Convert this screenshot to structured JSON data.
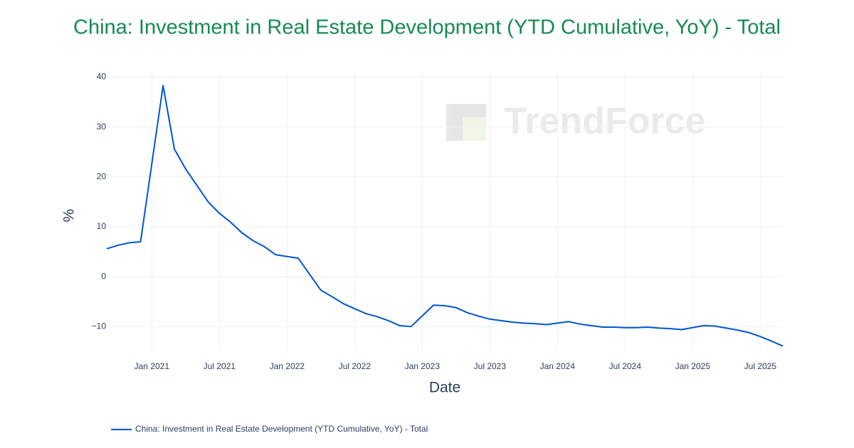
{
  "chart_data": {
    "type": "line",
    "title": "China: Investment in Real Estate Development (YTD Cumulative, YoY) - Total",
    "xlabel": "Date",
    "ylabel": "%",
    "watermark": "TrendForce",
    "x": [
      "2020-09",
      "2020-10",
      "2020-11",
      "2020-12",
      "2021-02",
      "2021-03",
      "2021-04",
      "2021-05",
      "2021-06",
      "2021-07",
      "2021-08",
      "2021-09",
      "2021-10",
      "2021-11",
      "2021-12",
      "2022-02",
      "2022-04",
      "2022-05",
      "2022-06",
      "2022-07",
      "2022-08",
      "2022-09",
      "2022-10",
      "2022-11",
      "2022-12",
      "2023-02",
      "2023-03",
      "2023-04",
      "2023-05",
      "2023-06",
      "2023-07",
      "2023-08",
      "2023-09",
      "2023-10",
      "2023-11",
      "2023-12",
      "2024-02",
      "2024-03",
      "2024-04",
      "2024-05",
      "2024-06",
      "2024-07",
      "2024-08",
      "2024-09",
      "2024-10",
      "2024-11",
      "2024-12",
      "2025-02",
      "2025-03",
      "2025-04",
      "2025-05",
      "2025-06",
      "2025-07",
      "2025-08",
      "2025-09"
    ],
    "series": [
      {
        "name": "China: Investment in Real Estate Development (YTD Cumulative, YoY) - Total",
        "color": "#0055cc",
        "values": [
          5.6,
          6.3,
          6.8,
          7.0,
          38.3,
          25.6,
          21.6,
          18.3,
          15.0,
          12.7,
          10.9,
          8.8,
          7.2,
          6.0,
          4.4,
          3.7,
          -2.7,
          -4.0,
          -5.4,
          -6.4,
          -7.4,
          -8.0,
          -8.8,
          -9.8,
          -10.0,
          -5.7,
          -5.8,
          -6.2,
          -7.2,
          -7.9,
          -8.5,
          -8.8,
          -9.1,
          -9.3,
          -9.4,
          -9.6,
          -9.0,
          -9.5,
          -9.8,
          -10.1,
          -10.1,
          -10.2,
          -10.2,
          -10.1,
          -10.3,
          -10.4,
          -10.6,
          -9.8,
          -9.9,
          -10.3,
          -10.7,
          -11.2,
          -12.0,
          -12.9,
          -13.9
        ]
      }
    ],
    "xlim": [
      "2020-09",
      "2025-09"
    ],
    "xticks": [
      {
        "value": "2021-01",
        "label": "Jan 2021"
      },
      {
        "value": "2021-07",
        "label": "Jul 2021"
      },
      {
        "value": "2022-01",
        "label": "Jan 2022"
      },
      {
        "value": "2022-07",
        "label": "Jul 2022"
      },
      {
        "value": "2023-01",
        "label": "Jan 2023"
      },
      {
        "value": "2023-07",
        "label": "Jul 2023"
      },
      {
        "value": "2024-01",
        "label": "Jan 2024"
      },
      {
        "value": "2024-07",
        "label": "Jul 2024"
      },
      {
        "value": "2025-01",
        "label": "Jan 2025"
      },
      {
        "value": "2025-07",
        "label": "Jul 2025"
      }
    ],
    "ylim": [
      -14.8,
      41.2
    ],
    "yticks": [
      {
        "value": -10,
        "label": "−10"
      },
      0,
      10,
      20,
      30,
      40
    ],
    "grid": true
  }
}
